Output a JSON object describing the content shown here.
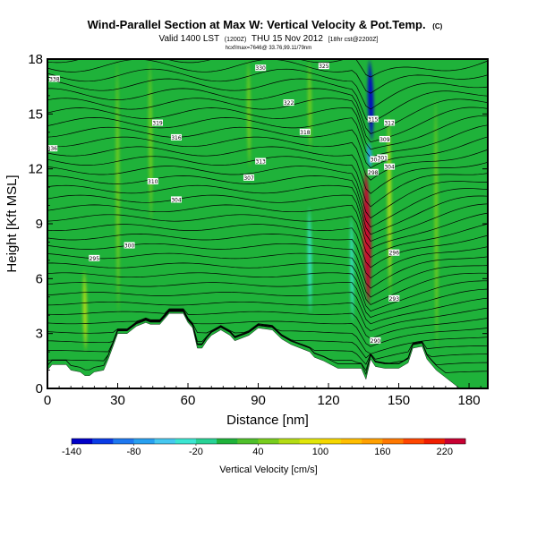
{
  "title": {
    "main": "Wind-Parallel Section at Max W: Vertical Velocity & Pot.Temp.",
    "main_mark": "(C)",
    "valid": "Valid 1400 LST",
    "valid_small1": "(1200Z)",
    "valid_day": "THU 15 Nov 2012",
    "valid_small2": "[18hr cst@2200Z]",
    "coords": "hcxf/max=7646@ 33.76,99.11/79nm"
  },
  "colors": {
    "terrain": "#ffffff",
    "contour": "#000000",
    "background": "#1fb23a"
  },
  "chart_data": {
    "type": "heatmap",
    "xlabel": "Distance [nm]",
    "ylabel": "Height [Kft MSL]",
    "xlim": [
      0,
      188
    ],
    "ylim": [
      0,
      18
    ],
    "x_ticks": [
      0,
      30,
      60,
      90,
      120,
      150,
      180
    ],
    "y_ticks": [
      0,
      3,
      6,
      9,
      12,
      15,
      18
    ],
    "terrain_height": [
      [
        0,
        1.0
      ],
      [
        2,
        1.3
      ],
      [
        4,
        1.3
      ],
      [
        8,
        1.3
      ],
      [
        10,
        1.0
      ],
      [
        14,
        0.9
      ],
      [
        16,
        0.7
      ],
      [
        18,
        0.7
      ],
      [
        20,
        0.9
      ],
      [
        24,
        1.0
      ],
      [
        26,
        1.6
      ],
      [
        28,
        2.3
      ],
      [
        30,
        3.0
      ],
      [
        34,
        3.0
      ],
      [
        38,
        3.4
      ],
      [
        42,
        3.6
      ],
      [
        44,
        3.5
      ],
      [
        48,
        3.5
      ],
      [
        52,
        4.1
      ],
      [
        58,
        4.1
      ],
      [
        60,
        3.6
      ],
      [
        62,
        3.3
      ],
      [
        64,
        2.2
      ],
      [
        66,
        2.2
      ],
      [
        68,
        2.6
      ],
      [
        70,
        2.9
      ],
      [
        74,
        3.2
      ],
      [
        78,
        2.9
      ],
      [
        80,
        2.6
      ],
      [
        86,
        2.9
      ],
      [
        90,
        3.3
      ],
      [
        96,
        3.2
      ],
      [
        100,
        2.7
      ],
      [
        104,
        2.4
      ],
      [
        108,
        2.2
      ],
      [
        112,
        2.0
      ],
      [
        114,
        1.7
      ],
      [
        118,
        1.5
      ],
      [
        124,
        1.1
      ],
      [
        130,
        1.1
      ],
      [
        134,
        1.1
      ],
      [
        136,
        0.5
      ],
      [
        138,
        1.6
      ],
      [
        140,
        1.2
      ],
      [
        144,
        1.1
      ],
      [
        150,
        1.1
      ],
      [
        154,
        1.4
      ],
      [
        156,
        2.2
      ],
      [
        160,
        2.3
      ],
      [
        162,
        1.6
      ],
      [
        166,
        1.0
      ],
      [
        170,
        0.6
      ],
      [
        176,
        0.0
      ],
      [
        188,
        0.0
      ]
    ],
    "vertical_velocity_features": [
      {
        "x": 136.5,
        "y_from": 4.5,
        "y_to": 12.0,
        "value": 240
      },
      {
        "x": 136.0,
        "y_from": 6.5,
        "y_to": 9.5,
        "value": 160
      },
      {
        "x": 138.0,
        "y_from": 13.5,
        "y_to": 18.0,
        "value": -140
      },
      {
        "x": 137.5,
        "y_from": 12.0,
        "y_to": 13.5,
        "value": -80
      },
      {
        "x": 112.0,
        "y_from": 4.0,
        "y_to": 10.0,
        "value": -40
      },
      {
        "x": 130.0,
        "y_from": 3.5,
        "y_to": 9.5,
        "value": -30
      },
      {
        "x": 146.0,
        "y_from": 5.0,
        "y_to": 15.0,
        "value": 60
      },
      {
        "x": 16.0,
        "y_from": 2.0,
        "y_to": 6.5,
        "value": 60
      },
      {
        "x": 30.0,
        "y_from": 4.0,
        "y_to": 18.0,
        "value": 40
      },
      {
        "x": 44.0,
        "y_from": 9.0,
        "y_to": 18.0,
        "value": 40
      },
      {
        "x": 86.0,
        "y_from": 12.0,
        "y_to": 18.0,
        "value": 40
      },
      {
        "x": 112.0,
        "y_from": 13.0,
        "y_to": 18.0,
        "value": 40
      },
      {
        "x": 166.0,
        "y_from": 2.0,
        "y_to": 16.0,
        "value": 40
      }
    ],
    "contour_labels": [
      {
        "text": "338",
        "x": 3,
        "y": 16.9
      },
      {
        "text": "336",
        "x": 2,
        "y": 13.1
      },
      {
        "text": "330",
        "x": 91,
        "y": 17.5
      },
      {
        "text": "325",
        "x": 118,
        "y": 17.6
      },
      {
        "text": "322",
        "x": 103,
        "y": 15.6
      },
      {
        "text": "319",
        "x": 47,
        "y": 14.5
      },
      {
        "text": "318",
        "x": 110,
        "y": 14.0
      },
      {
        "text": "316",
        "x": 55,
        "y": 13.7
      },
      {
        "text": "313",
        "x": 91,
        "y": 12.4
      },
      {
        "text": "310",
        "x": 45,
        "y": 11.3
      },
      {
        "text": "307",
        "x": 86,
        "y": 11.5
      },
      {
        "text": "304",
        "x": 55,
        "y": 10.3
      },
      {
        "text": "300",
        "x": 35,
        "y": 7.8
      },
      {
        "text": "295",
        "x": 20,
        "y": 7.1
      },
      {
        "text": "315",
        "x": 139,
        "y": 14.7
      },
      {
        "text": "312",
        "x": 146,
        "y": 14.5
      },
      {
        "text": "309",
        "x": 144,
        "y": 13.6
      },
      {
        "text": "306",
        "x": 140,
        "y": 12.5
      },
      {
        "text": "304",
        "x": 146,
        "y": 12.1
      },
      {
        "text": "301",
        "x": 143,
        "y": 12.6
      },
      {
        "text": "298",
        "x": 139,
        "y": 11.8
      },
      {
        "text": "296",
        "x": 148,
        "y": 7.4
      },
      {
        "text": "293",
        "x": 148,
        "y": 4.9
      },
      {
        "text": "290",
        "x": 140,
        "y": 2.6
      }
    ],
    "colorbar": {
      "label": "Vertical Velocity [cm/s]",
      "tick_labels": [
        "-140",
        "-80",
        "-20",
        "40",
        "100",
        "160",
        "220"
      ],
      "tick_values": [
        -140,
        -80,
        -20,
        40,
        100,
        160,
        220
      ],
      "range": [
        -140,
        240
      ],
      "levels": [
        {
          "from": -140,
          "to": -120,
          "color": "#0000c8"
        },
        {
          "from": -120,
          "to": -100,
          "color": "#0a3ce6"
        },
        {
          "from": -100,
          "to": -80,
          "color": "#1e78f0"
        },
        {
          "from": -80,
          "to": -60,
          "color": "#28a0f0"
        },
        {
          "from": -60,
          "to": -40,
          "color": "#46c8f0"
        },
        {
          "from": -40,
          "to": -20,
          "color": "#3ce6d2"
        },
        {
          "from": -20,
          "to": 0,
          "color": "#28d296"
        },
        {
          "from": 0,
          "to": 20,
          "color": "#1fb23a"
        },
        {
          "from": 20,
          "to": 40,
          "color": "#4fc02b"
        },
        {
          "from": 40,
          "to": 60,
          "color": "#78cd1e"
        },
        {
          "from": 60,
          "to": 80,
          "color": "#b4dc14"
        },
        {
          "from": 80,
          "to": 100,
          "color": "#e1e60a"
        },
        {
          "from": 100,
          "to": 120,
          "color": "#f5d700"
        },
        {
          "from": 120,
          "to": 140,
          "color": "#ffbe00"
        },
        {
          "from": 140,
          "to": 160,
          "color": "#ffa000"
        },
        {
          "from": 160,
          "to": 180,
          "color": "#ff7800"
        },
        {
          "from": 180,
          "to": 200,
          "color": "#ff4600"
        },
        {
          "from": 200,
          "to": 220,
          "color": "#f01e00"
        },
        {
          "from": 220,
          "to": 240,
          "color": "#c80032"
        }
      ]
    }
  }
}
